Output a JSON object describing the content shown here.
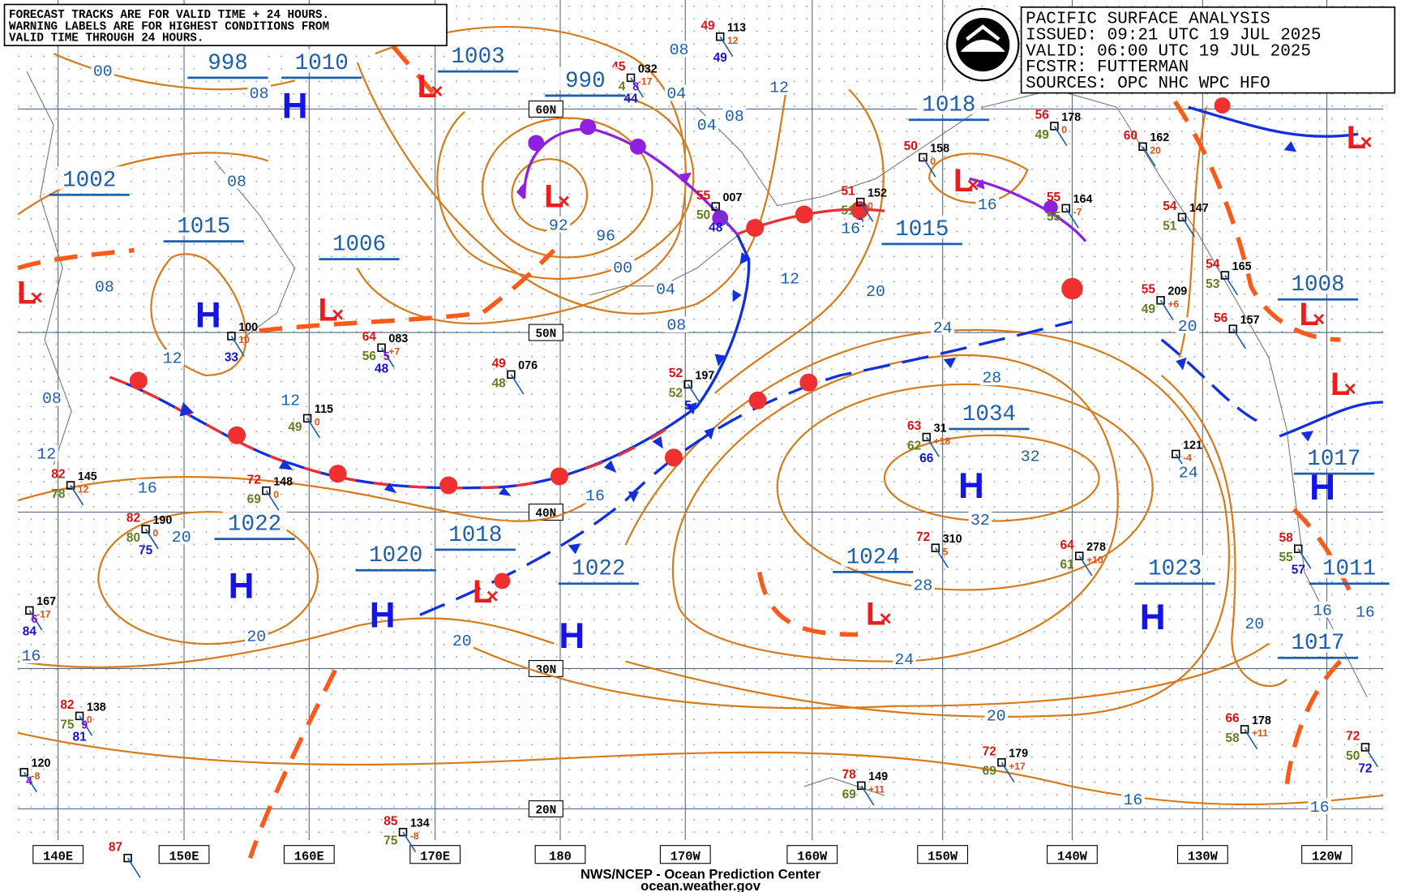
{
  "notice": [
    "FORECAST TRACKS ARE FOR VALID TIME + 24 HOURS.",
    "WARNING LABELS ARE FOR HIGHEST CONDITIONS FROM",
    "VALID TIME THROUGH 24 HOURS."
  ],
  "info": [
    "PACIFIC SURFACE ANALYSIS",
    "ISSUED: 09:21 UTC 19 JUL 2025",
    "VALID:  06:00 UTC 19 JUL 2025",
    "FCSTR:  FUTTERMAN",
    "SOURCES: OPC NHC WPC HFO"
  ],
  "latitudes": [
    "60N",
    "50N",
    "40N",
    "30N",
    "20N"
  ],
  "longitudes": [
    "140E",
    "150E",
    "160E",
    "170E",
    "180",
    "170W",
    "160W",
    "150W",
    "140W",
    "130W",
    "120W"
  ],
  "pressure_labels": [
    "998",
    "1010",
    "1003",
    "990",
    "1002",
    "1015",
    "1006",
    "1018",
    "1015",
    "1034",
    "1022",
    "1020",
    "1018",
    "1022",
    "1024",
    "1023",
    "1008",
    "1017",
    "1011",
    "1017"
  ],
  "centers": [
    "H",
    "L",
    "L",
    "H",
    "L",
    "L",
    "H",
    "H",
    "H",
    "L",
    "H",
    "L",
    "H",
    "L",
    "H",
    "L",
    "L",
    "L"
  ],
  "isobar_labels": [
    "00",
    "08",
    "08",
    "08",
    "12",
    "08",
    "12",
    "12",
    "16",
    "20",
    "20",
    "16",
    "92",
    "96",
    "00",
    "04",
    "08",
    "08",
    "04",
    "04",
    "08",
    "12",
    "12",
    "16",
    "20",
    "24",
    "28",
    "32",
    "32",
    "28",
    "24",
    "20",
    "16",
    "16",
    "20",
    "24",
    "20",
    "16",
    "16",
    "20",
    "16",
    "16"
  ],
  "stations": [
    {
      "p": "113",
      "t": "49",
      "c": "12",
      "w": "49"
    },
    {
      "p": "032",
      "t": "45",
      "c": "-17",
      "d": "4",
      "v": "8",
      "w": "44"
    },
    {
      "p": "007",
      "t": "55",
      "d": "50",
      "w": "48"
    },
    {
      "p": "100",
      "c": "10",
      "w": "33"
    },
    {
      "p": "083",
      "t": "64",
      "c": "+7",
      "d": "56",
      "v": "5",
      "w": "48"
    },
    {
      "p": "076",
      "t": "49",
      "d": "48"
    },
    {
      "p": "115",
      "c": "0",
      "d": "49"
    },
    {
      "p": "197",
      "t": "52",
      "d": "52",
      "w": "5"
    },
    {
      "p": "145",
      "t": "82",
      "c": "12",
      "d": "78"
    },
    {
      "p": "148",
      "t": "72",
      "c": "0",
      "d": "69"
    },
    {
      "p": "190",
      "t": "82",
      "c": "0",
      "d": "80",
      "w": "75"
    },
    {
      "p": "167",
      "c": "-17",
      "v": "6",
      "w": "84"
    },
    {
      "p": "138",
      "t": "82",
      "c": "0",
      "d": "75",
      "v": "9",
      "w": "81"
    },
    {
      "p": "120",
      "c": "-8",
      "v": "4"
    },
    {
      "p": "134",
      "t": "85",
      "c": "-8",
      "d": "75"
    },
    {
      "t": "87"
    },
    {
      "p": "31",
      "t": "63",
      "c": "+18",
      "d": "62",
      "w": "66"
    },
    {
      "p": "310",
      "t": "72",
      "c": "5"
    },
    {
      "p": "278",
      "t": "64",
      "c": "+10",
      "d": "61"
    },
    {
      "p": "121",
      "c": "-4"
    },
    {
      "p": "209",
      "t": "55",
      "c": "+6",
      "d": "49"
    },
    {
      "p": "157",
      "t": "56"
    },
    {
      "p": "165",
      "t": "54",
      "d": "53"
    },
    {
      "p": "147",
      "t": "54",
      "d": "51"
    },
    {
      "p": "162",
      "t": "60",
      "c": "20"
    },
    {
      "p": "178",
      "t": "56",
      "c": "0",
      "d": "49"
    },
    {
      "p": "164",
      "t": "55",
      "c": "-7",
      "d": "55"
    },
    {
      "p": "158",
      "t": "50",
      "c": "0"
    },
    {
      "p": "152",
      "t": "51",
      "c": "0",
      "d": "51",
      "w": "2"
    },
    {
      "p": "179",
      "t": "72",
      "c": "+17",
      "d": "69"
    },
    {
      "p": "149",
      "t": "78",
      "c": "+11",
      "d": "69"
    },
    {
      "p": "178",
      "t": "66",
      "c": "+11",
      "d": "58"
    },
    {
      "t": "58",
      "d": "55",
      "w": "57"
    },
    {
      "t": "72",
      "d": "50",
      "w": "72"
    }
  ],
  "footer": [
    "NWS/NCEP - Ocean Prediction Center",
    "ocean.weather.gov"
  ]
}
